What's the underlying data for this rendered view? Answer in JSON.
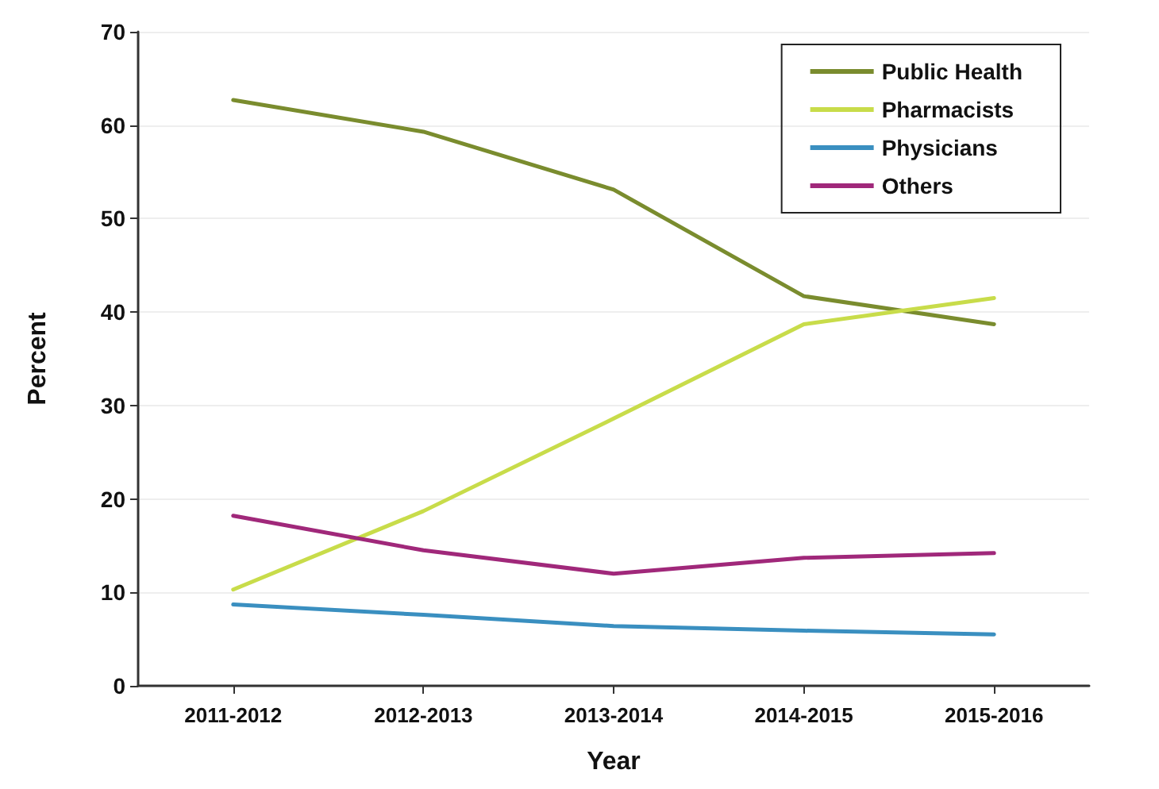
{
  "chart_data": {
    "type": "line",
    "xlabel": "Year",
    "ylabel": "Percent",
    "categories": [
      "2011-2012",
      "2012-2013",
      "2013-2014",
      "2014-2015",
      "2015-2016"
    ],
    "series": [
      {
        "name": "Public Health",
        "color": "#7a8c2e",
        "values": [
          62.7,
          59.3,
          53.1,
          41.7,
          38.7
        ]
      },
      {
        "name": "Pharmacists",
        "color": "#c8dc4a",
        "values": [
          10.3,
          18.7,
          28.6,
          38.7,
          41.5
        ]
      },
      {
        "name": "Physicians",
        "color": "#3a8fc0",
        "values": [
          8.7,
          7.6,
          6.4,
          5.9,
          5.5
        ]
      },
      {
        "name": "Others",
        "color": "#a0287a",
        "values": [
          18.2,
          14.5,
          12.0,
          13.7,
          14.2
        ]
      }
    ],
    "ylim": [
      0,
      70
    ],
    "yticks": [
      0,
      10,
      20,
      30,
      40,
      50,
      60,
      70
    ],
    "grid": "y",
    "legend": "top right",
    "marker": "none",
    "line_style": "solid"
  }
}
